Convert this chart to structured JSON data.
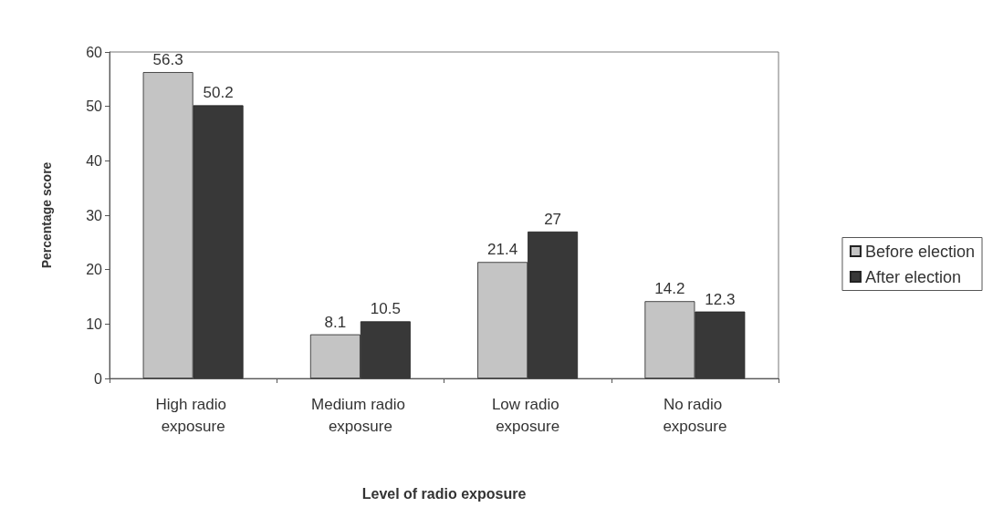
{
  "chart_data": {
    "type": "bar",
    "xlabel": "Level of radio exposure",
    "ylabel": "Percentage score",
    "categories": [
      "High radio exposure",
      "Medium radio exposure",
      "Low radio exposure",
      "No radio exposure"
    ],
    "series": [
      {
        "name": "Before election",
        "color": "#c4c4c4",
        "values": [
          56.3,
          8.1,
          21.4,
          14.2
        ]
      },
      {
        "name": "After election",
        "color": "#383838",
        "values": [
          50.2,
          10.5,
          27,
          12.3
        ]
      }
    ],
    "ylim": [
      0,
      60
    ],
    "yticks": [
      0,
      10,
      20,
      30,
      40,
      50,
      60
    ],
    "grid": false,
    "legend": "right",
    "data_labels": true
  }
}
